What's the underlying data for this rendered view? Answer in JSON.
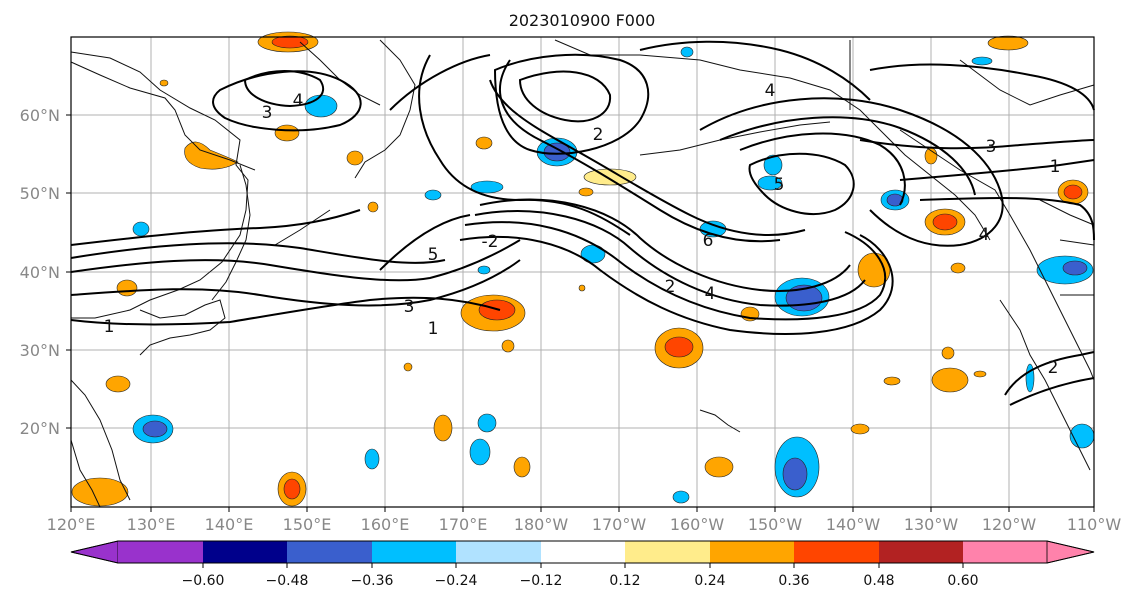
{
  "title": "2023010900 F000",
  "map": {
    "lon_labels": [
      "120°E",
      "130°E",
      "140°E",
      "150°E",
      "160°E",
      "170°E",
      "180°W",
      "170°W",
      "160°W",
      "150°W",
      "140°W",
      "130°W",
      "120°W",
      "110°W"
    ],
    "lat_labels": [
      "60°N",
      "50°N",
      "40°N",
      "30°N",
      "20°N"
    ],
    "contour_labels": [
      "1",
      "2",
      "3",
      "4",
      "5",
      "6",
      "-2",
      "1",
      "2",
      "3",
      "4",
      "5",
      "3",
      "4",
      "1",
      "2",
      "4"
    ]
  },
  "colorbar": {
    "ticks": [
      "−0.60",
      "−0.48",
      "−0.36",
      "−0.24",
      "−0.12",
      "0.12",
      "0.24",
      "0.36",
      "0.48",
      "0.60"
    ],
    "colors": {
      "c1": "#9932cc",
      "c2": "#00008b",
      "c3": "#3a5fcd",
      "c4": "#00bfff",
      "c5": "#b0e2ff",
      "c6": "#ffffff",
      "c7": "#ffec8b",
      "c8": "#ffa500",
      "c9": "#ff4500",
      "c10": "#b22222",
      "c11": "#ff82ab"
    }
  }
}
